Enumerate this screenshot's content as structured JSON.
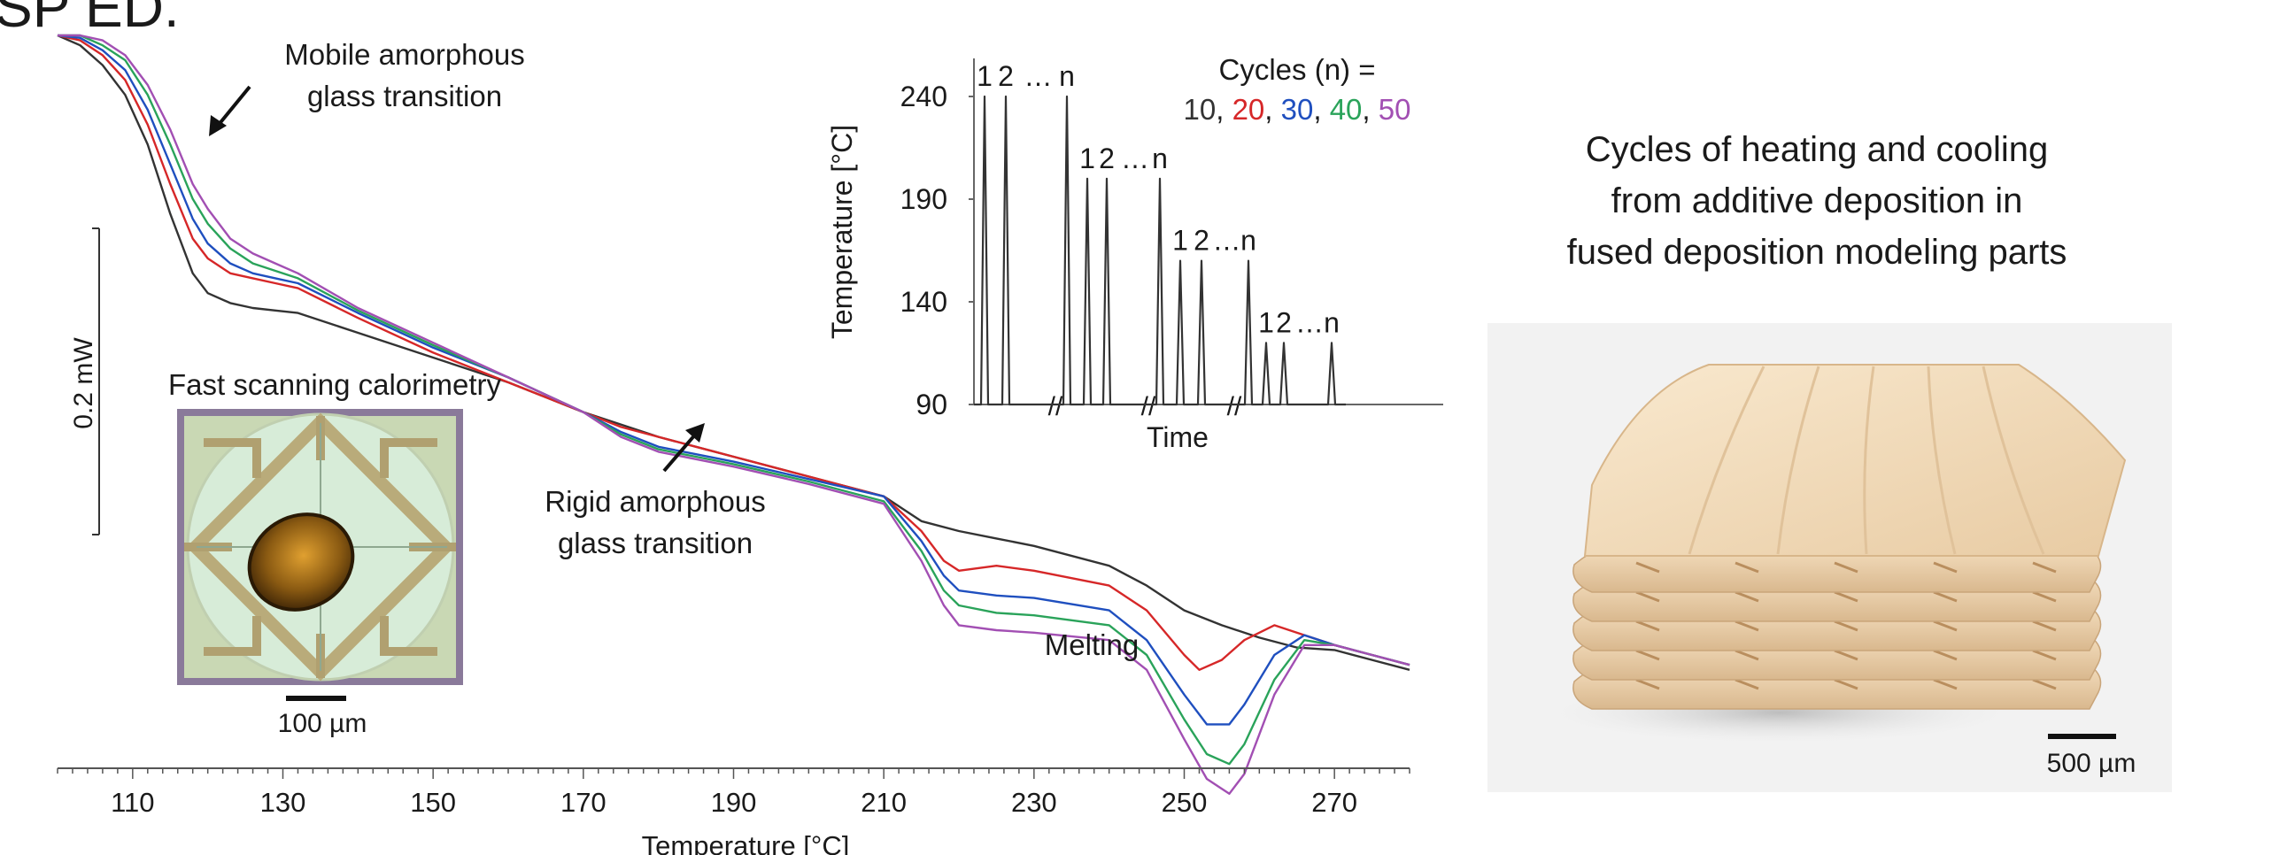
{
  "heading_fragment": "SP ED.",
  "chart_data": [
    {
      "type": "line",
      "title": "",
      "xlabel": "Temperature  [°C]",
      "ylabel": "",
      "xlim": [
        100,
        280
      ],
      "x_ticks": [
        110,
        130,
        150,
        170,
        190,
        210,
        230,
        250,
        270
      ],
      "y_scale_bar": "0.2 mW",
      "annotations": {
        "mobile": [
          "Mobile amorphous",
          "glass transition"
        ],
        "rigid": [
          "Rigid amorphous",
          "glass transition"
        ],
        "melting": "Melting"
      },
      "series": [
        {
          "name": "10",
          "color": "#333333",
          "x": [
            100,
            103,
            106,
            109,
            112,
            115,
            118,
            120,
            123,
            126,
            129,
            132,
            140,
            150,
            160,
            170,
            180,
            190,
            200,
            210,
            215,
            220,
            225,
            230,
            240,
            245,
            250,
            255,
            260,
            265,
            270,
            275,
            280
          ],
          "y": [
            0.0,
            0.02,
            0.06,
            0.12,
            0.22,
            0.36,
            0.48,
            0.52,
            0.54,
            0.55,
            0.555,
            0.56,
            0.6,
            0.65,
            0.7,
            0.76,
            0.81,
            0.85,
            0.89,
            0.93,
            0.98,
            1.0,
            1.015,
            1.03,
            1.07,
            1.11,
            1.16,
            1.19,
            1.215,
            1.235,
            1.24,
            1.26,
            1.28
          ]
        },
        {
          "name": "20",
          "color": "#d62728",
          "x": [
            100,
            103,
            106,
            109,
            112,
            115,
            118,
            120,
            123,
            126,
            129,
            132,
            140,
            150,
            160,
            170,
            175,
            180,
            185,
            190,
            200,
            210,
            215,
            218,
            220,
            225,
            230,
            240,
            245,
            250,
            252,
            255,
            258,
            262,
            266,
            270,
            275,
            280
          ],
          "y": [
            0.0,
            0.01,
            0.04,
            0.09,
            0.18,
            0.3,
            0.41,
            0.45,
            0.48,
            0.49,
            0.5,
            0.51,
            0.57,
            0.64,
            0.7,
            0.76,
            0.79,
            0.81,
            0.83,
            0.85,
            0.89,
            0.93,
            1.0,
            1.06,
            1.08,
            1.07,
            1.08,
            1.11,
            1.16,
            1.25,
            1.28,
            1.26,
            1.22,
            1.19,
            1.21,
            1.23,
            1.25,
            1.27
          ]
        },
        {
          "name": "30",
          "color": "#1f4fbf",
          "x": [
            100,
            103,
            106,
            109,
            112,
            115,
            118,
            120,
            123,
            126,
            129,
            132,
            140,
            150,
            160,
            170,
            175,
            180,
            185,
            190,
            200,
            210,
            215,
            218,
            220,
            225,
            230,
            240,
            245,
            250,
            253,
            256,
            258,
            262,
            266,
            270,
            275,
            280
          ],
          "y": [
            0.0,
            0.005,
            0.03,
            0.07,
            0.15,
            0.26,
            0.37,
            0.42,
            0.46,
            0.48,
            0.49,
            0.5,
            0.56,
            0.63,
            0.69,
            0.76,
            0.8,
            0.83,
            0.845,
            0.86,
            0.895,
            0.93,
            1.02,
            1.09,
            1.12,
            1.13,
            1.135,
            1.16,
            1.22,
            1.33,
            1.39,
            1.39,
            1.35,
            1.25,
            1.21,
            1.23,
            1.25,
            1.27
          ]
        },
        {
          "name": "40",
          "color": "#2aa35a",
          "x": [
            100,
            103,
            106,
            109,
            112,
            115,
            118,
            120,
            123,
            126,
            129,
            132,
            140,
            150,
            160,
            170,
            175,
            180,
            185,
            190,
            200,
            210,
            215,
            218,
            220,
            225,
            230,
            240,
            245,
            250,
            253,
            256,
            258,
            262,
            266,
            270,
            275,
            280
          ],
          "y": [
            0.0,
            0.0,
            0.02,
            0.05,
            0.12,
            0.22,
            0.33,
            0.38,
            0.43,
            0.46,
            0.475,
            0.49,
            0.555,
            0.625,
            0.69,
            0.76,
            0.805,
            0.835,
            0.85,
            0.865,
            0.9,
            0.94,
            1.04,
            1.12,
            1.15,
            1.165,
            1.17,
            1.19,
            1.25,
            1.38,
            1.45,
            1.47,
            1.43,
            1.3,
            1.22,
            1.23,
            1.25,
            1.27
          ]
        },
        {
          "name": "50",
          "color": "#a24fb3",
          "x": [
            100,
            103,
            106,
            109,
            112,
            115,
            118,
            120,
            123,
            126,
            129,
            132,
            140,
            150,
            160,
            170,
            175,
            180,
            185,
            190,
            200,
            210,
            215,
            218,
            220,
            225,
            230,
            240,
            245,
            250,
            253,
            256,
            258,
            262,
            266,
            270,
            275,
            280
          ],
          "y": [
            0.0,
            0.0,
            0.01,
            0.04,
            0.1,
            0.19,
            0.3,
            0.35,
            0.41,
            0.44,
            0.46,
            0.48,
            0.55,
            0.62,
            0.69,
            0.76,
            0.81,
            0.84,
            0.855,
            0.87,
            0.905,
            0.945,
            1.06,
            1.15,
            1.19,
            1.2,
            1.205,
            1.22,
            1.28,
            1.42,
            1.5,
            1.53,
            1.49,
            1.33,
            1.23,
            1.23,
            1.25,
            1.27
          ]
        }
      ]
    },
    {
      "type": "line",
      "title": "",
      "xlabel": "Time",
      "ylabel": "Temperature  [°C]",
      "ylim": [
        90,
        250
      ],
      "y_ticks": [
        90,
        140,
        190,
        240
      ],
      "legend_title": "Cycles (n) =",
      "legend": [
        {
          "text": "10",
          "color": "#333333"
        },
        {
          "text": "20",
          "color": "#d62728"
        },
        {
          "text": "30",
          "color": "#1f4fbf"
        },
        {
          "text": "40",
          "color": "#2aa35a"
        },
        {
          "text": "50",
          "color": "#a24fb3"
        }
      ],
      "groups": [
        {
          "peak": 240,
          "labels": [
            "1",
            "2",
            "…",
            "n"
          ]
        },
        {
          "peak": 200,
          "labels": [
            "1",
            "2",
            "…",
            "n"
          ]
        },
        {
          "peak": 160,
          "labels": [
            "1",
            "2",
            "…",
            "n"
          ]
        },
        {
          "peak": 120,
          "labels": [
            "1",
            "2",
            "…",
            "n"
          ]
        }
      ],
      "break_symbol": "//"
    }
  ],
  "photo_label": "Fast scanning calorimetry",
  "photo_scale": "100 µm",
  "right_caption": [
    "Cycles of heating and cooling",
    "from additive deposition in",
    "fused deposition modeling parts"
  ],
  "render_scale": "500 µm"
}
